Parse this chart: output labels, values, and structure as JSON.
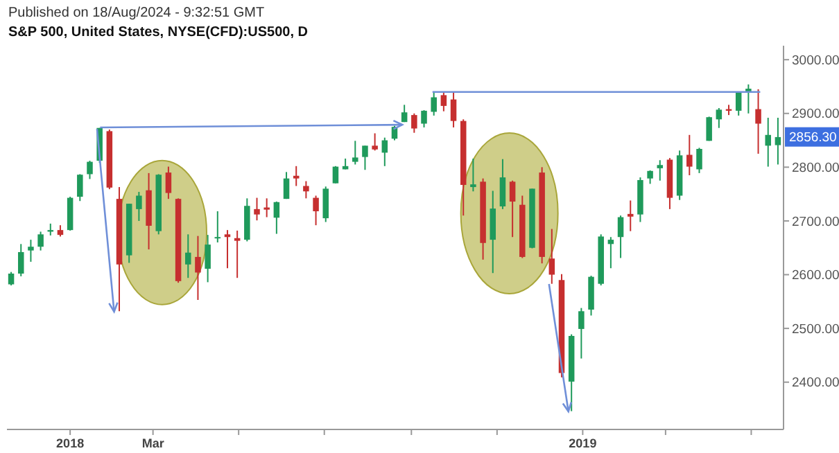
{
  "chart_data": {
    "type": "candlestick",
    "subtitle": "Published on 18/Aug/2024 - 9:32:51 GMT",
    "title": "S&P 500, United States, NYSE(CFD):US500, D",
    "colors": [
      "#1f9a5b",
      "#1f9a5b",
      "#1f9a5b",
      "#1f9a5b",
      "#1f9a5b",
      "#c62f2f",
      "#1f9a5b",
      "#1f9a5b",
      "#1f9a5b",
      "#1f9a5b",
      "#c62f2f",
      "#c62f2f",
      "#1f9a5b",
      "#1f9a5b",
      "#c62f2f",
      "#1f9a5b",
      "#c62f2f",
      "#c62f2f",
      "#1f9a5b",
      "#c62f2f",
      "#1f9a5b",
      "#1f9a5b",
      "#c62f2f",
      "#c62f2f",
      "#1f9a5b",
      "#c62f2f",
      "#c62f2f",
      "#1f9a5b",
      "#1f9a5b",
      "#c62f2f",
      "#c62f2f",
      "#c62f2f",
      "#1f9a5b",
      "#1f9a5b",
      "#1f9a5b",
      "#1f9a5b",
      "#1f9a5b",
      "#c62f2f",
      "#1f9a5b",
      "#1f9a5b",
      "#1f9a5b",
      "#c62f2f",
      "#1f9a5b",
      "#1f9a5b",
      "#c62f2f",
      "#c62f2f",
      "#c62f2f",
      "#1f9a5b",
      "#c62f2f",
      "#1f9a5b",
      "#1f9a5b",
      "#c62f2f",
      "#c62f2f",
      "#1f9a5b",
      "#c62f2f",
      "#c62f2f",
      "#c62f2f",
      "#1f9a5b",
      "#1f9a5b",
      "#1f9a5b",
      "#1f9a5b",
      "#1f9a5b",
      "#1f9a5b",
      "#c62f2f",
      "#1f9a5b",
      "#1f9a5b",
      "#1f9a5b",
      "#c62f2f",
      "#1f9a5b",
      "#c62f2f",
      "#1f9a5b",
      "#1f9a5b",
      "#1f9a5b",
      "#c62f2f",
      "#1f9a5b",
      "#1f9a5b",
      "#c62f2f",
      "#1f9a5b",
      "#1f9a5b"
    ],
    "xlim": [
      "2017-11-17",
      "2019-05-24"
    ],
    "xticks": [
      {
        "value": "2018-01-01",
        "label": "2018"
      },
      {
        "value": "2018-03-01",
        "label": "Mar"
      },
      {
        "value": "2018-05-01",
        "label": null
      },
      {
        "value": "2018-07-01",
        "label": null
      },
      {
        "value": "2018-09-01",
        "label": null
      },
      {
        "value": "2018-11-01",
        "label": null
      },
      {
        "value": "2019-01-01",
        "label": "2019"
      },
      {
        "value": "2019-03-01",
        "label": null
      },
      {
        "value": "2019-05-01",
        "label": null
      }
    ],
    "ylim": [
      2312,
      3026
    ],
    "yticks": [
      {
        "value": 2400,
        "label": "2400.00"
      },
      {
        "value": 2500,
        "label": "2500.00"
      },
      {
        "value": 2600,
        "label": "2600.00"
      },
      {
        "value": 2700,
        "label": "2700.00"
      },
      {
        "value": 2800,
        "label": "2800.00"
      },
      {
        "value": 2900,
        "label": "2900.00"
      },
      {
        "value": 3000,
        "label": "3000.00"
      }
    ],
    "annotations": [
      {
        "text": "2856.30",
        "y": 2856.3
      }
    ],
    "ref_lines": [
      {
        "axis": "y",
        "value": 2940,
        "color": "#6f8fd8"
      }
    ],
    "x": [
      "2017-11-20",
      "2017-11-27",
      "2017-12-04",
      "2017-12-11",
      "2017-12-18",
      "2017-12-25",
      "2018-01-01",
      "2018-01-08",
      "2018-01-15",
      "2018-01-22",
      "2018-01-29",
      "2018-02-05",
      "2018-02-12",
      "2018-02-19",
      "2018-02-26",
      "2018-03-05",
      "2018-03-12",
      "2018-03-19",
      "2018-03-26",
      "2018-04-02",
      "2018-04-09",
      "2018-04-16",
      "2018-04-23",
      "2018-04-30",
      "2018-05-07",
      "2018-05-14",
      "2018-05-21",
      "2018-05-28",
      "2018-06-04",
      "2018-06-11",
      "2018-06-18",
      "2018-06-25",
      "2018-07-02",
      "2018-07-09",
      "2018-07-16",
      "2018-07-23",
      "2018-07-30",
      "2018-08-06",
      "2018-08-13",
      "2018-08-20",
      "2018-08-27",
      "2018-09-03",
      "2018-09-10",
      "2018-09-17",
      "2018-09-24",
      "2018-10-01",
      "2018-10-08",
      "2018-10-15",
      "2018-10-22",
      "2018-10-29",
      "2018-11-05",
      "2018-11-12",
      "2018-11-19",
      "2018-11-26",
      "2018-12-03",
      "2018-12-10",
      "2018-12-17",
      "2018-12-24",
      "2018-12-31",
      "2019-01-07",
      "2019-01-14",
      "2019-01-21",
      "2019-01-28",
      "2019-02-04",
      "2019-02-11",
      "2019-02-18",
      "2019-02-25",
      "2019-03-04",
      "2019-03-11",
      "2019-03-18",
      "2019-03-25",
      "2019-04-01",
      "2019-04-08",
      "2019-04-15",
      "2019-04-22",
      "2019-04-29",
      "2019-05-06",
      "2019-05-13",
      "2019-05-20"
    ],
    "ohlc": [
      [
        2582,
        2605,
        2580,
        2602
      ],
      [
        2602,
        2657,
        2597,
        2642
      ],
      [
        2645,
        2665,
        2624,
        2652
      ],
      [
        2652,
        2680,
        2645,
        2675
      ],
      [
        2680,
        2695,
        2673,
        2683
      ],
      [
        2683,
        2692,
        2671,
        2674
      ],
      [
        2683,
        2745,
        2682,
        2743
      ],
      [
        2745,
        2787,
        2737,
        2786
      ],
      [
        2787,
        2812,
        2778,
        2810
      ],
      [
        2812,
        2873,
        2808,
        2873
      ],
      [
        2867,
        2870,
        2759,
        2762
      ],
      [
        2741,
        2763,
        2532,
        2619
      ],
      [
        2636,
        2732,
        2622,
        2732
      ],
      [
        2722,
        2754,
        2700,
        2747
      ],
      [
        2757,
        2789,
        2647,
        2691
      ],
      [
        2681,
        2787,
        2675,
        2786
      ],
      [
        2790,
        2801,
        2741,
        2752
      ],
      [
        2741,
        2742,
        2585,
        2588
      ],
      [
        2619,
        2675,
        2594,
        2641
      ],
      [
        2633,
        2672,
        2553,
        2604
      ],
      [
        2611,
        2674,
        2586,
        2656
      ],
      [
        2670,
        2718,
        2660,
        2670
      ],
      [
        2675,
        2683,
        2612,
        2670
      ],
      [
        2668,
        2682,
        2594,
        2663
      ],
      [
        2665,
        2742,
        2662,
        2728
      ],
      [
        2722,
        2743,
        2701,
        2712
      ],
      [
        2725,
        2742,
        2707,
        2721
      ],
      [
        2706,
        2736,
        2676,
        2735
      ],
      [
        2741,
        2791,
        2741,
        2779
      ],
      [
        2784,
        2802,
        2765,
        2779
      ],
      [
        2765,
        2774,
        2742,
        2755
      ],
      [
        2743,
        2747,
        2692,
        2718
      ],
      [
        2705,
        2764,
        2698,
        2760
      ],
      [
        2770,
        2802,
        2770,
        2801
      ],
      [
        2796,
        2816,
        2796,
        2802
      ],
      [
        2810,
        2849,
        2805,
        2818
      ],
      [
        2819,
        2840,
        2795,
        2840
      ],
      [
        2840,
        2863,
        2831,
        2833
      ],
      [
        2827,
        2855,
        2802,
        2850
      ],
      [
        2853,
        2877,
        2850,
        2875
      ],
      [
        2884,
        2916,
        2884,
        2902
      ],
      [
        2897,
        2900,
        2864,
        2872
      ],
      [
        2881,
        2906,
        2874,
        2905
      ],
      [
        2903,
        2941,
        2896,
        2930
      ],
      [
        2934,
        2939,
        2904,
        2914
      ],
      [
        2926,
        2940,
        2874,
        2886
      ],
      [
        2886,
        2889,
        2710,
        2767
      ],
      [
        2763,
        2816,
        2755,
        2768
      ],
      [
        2773,
        2779,
        2628,
        2659
      ],
      [
        2665,
        2756,
        2603,
        2723
      ],
      [
        2727,
        2815,
        2722,
        2781
      ],
      [
        2773,
        2775,
        2670,
        2736
      ],
      [
        2730,
        2747,
        2631,
        2633
      ],
      [
        2650,
        2760,
        2649,
        2760
      ],
      [
        2790,
        2800,
        2621,
        2633
      ],
      [
        2630,
        2685,
        2583,
        2600
      ],
      [
        2590,
        2601,
        2409,
        2417
      ],
      [
        2401,
        2489,
        2346,
        2486
      ],
      [
        2499,
        2538,
        2444,
        2532
      ],
      [
        2535,
        2598,
        2524,
        2596
      ],
      [
        2583,
        2675,
        2580,
        2671
      ],
      [
        2657,
        2670,
        2612,
        2665
      ],
      [
        2670,
        2710,
        2631,
        2707
      ],
      [
        2713,
        2738,
        2681,
        2708
      ],
      [
        2712,
        2781,
        2698,
        2776
      ],
      [
        2779,
        2794,
        2769,
        2793
      ],
      [
        2798,
        2813,
        2775,
        2804
      ],
      [
        2814,
        2817,
        2722,
        2743
      ],
      [
        2747,
        2831,
        2739,
        2822
      ],
      [
        2823,
        2860,
        2785,
        2801
      ],
      [
        2796,
        2836,
        2789,
        2834
      ],
      [
        2849,
        2894,
        2849,
        2893
      ],
      [
        2889,
        2910,
        2873,
        2907
      ],
      [
        2908,
        2916,
        2897,
        2905
      ],
      [
        2905,
        2940,
        2896,
        2940
      ],
      [
        2941,
        2954,
        2900,
        2946
      ],
      [
        2908,
        2945,
        2825,
        2881
      ],
      [
        2840,
        2892,
        2801,
        2860
      ],
      [
        2841,
        2892,
        2805,
        2856
      ]
    ]
  }
}
